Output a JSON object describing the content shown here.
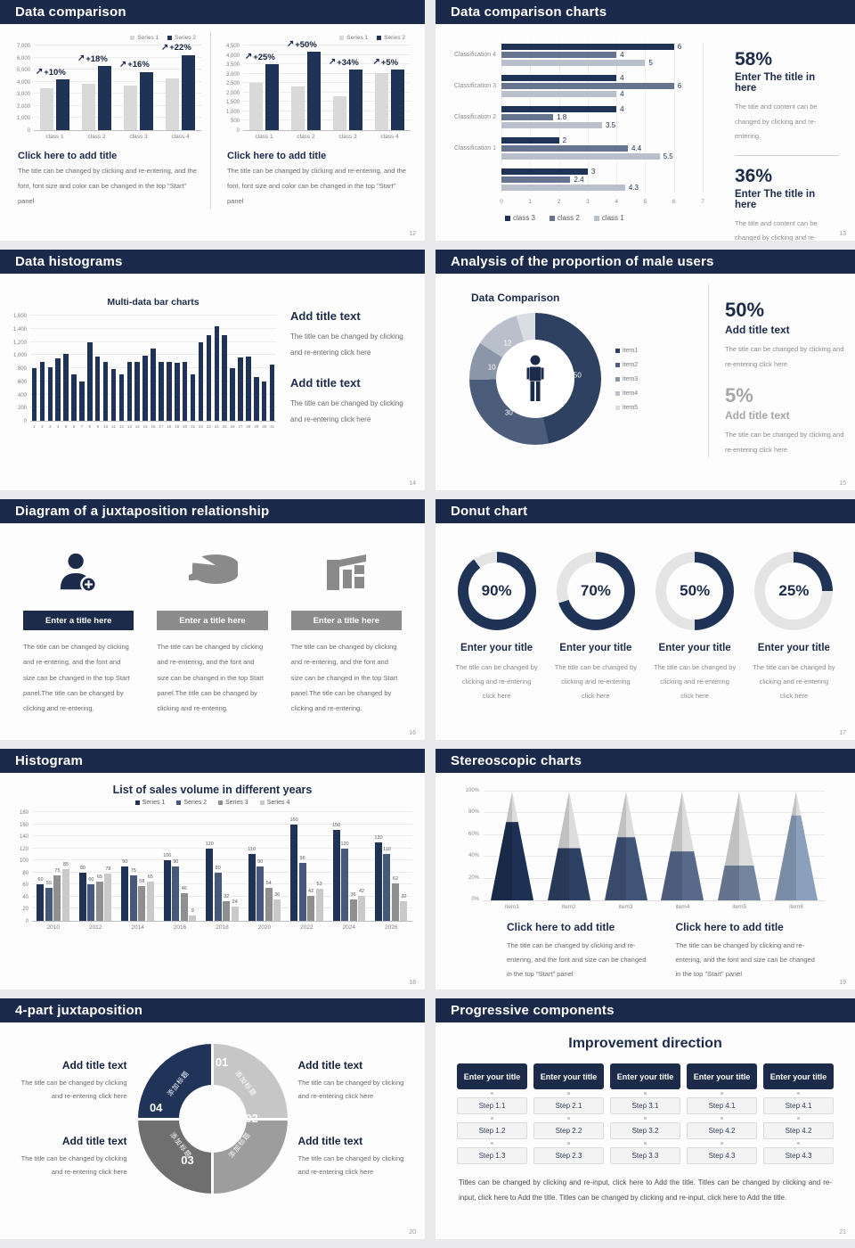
{
  "colors": {
    "header_bar": "#1b2a4a",
    "navy": "#1f3356",
    "light_gray_bar": "#d9d9d9",
    "background": "#e9e9ec"
  },
  "slides": {
    "s12": {
      "header": "Data comparison",
      "page": "12",
      "panels": [
        {
          "title": "Click here to add title",
          "body": "The title can be changed by clicking and re-entering, and the font, font size and color can be changed in the top \"Start\" panel"
        },
        {
          "title": "Click here to add title",
          "body": "The title can be changed by clicking and re-entering, and the font, font size and color can be changed in the top \"Start\" panel"
        }
      ]
    },
    "s13": {
      "header": "Data comparison charts",
      "page": "13",
      "stats": [
        {
          "pct": "58%",
          "title": "Enter The title in here",
          "body": "The title and content can be changed by clicking and re-entering."
        },
        {
          "pct": "36%",
          "title": "Enter The title in here",
          "body": "The title and content can be changed by clicking and re-entering."
        }
      ]
    },
    "s14": {
      "header": "Data histograms",
      "page": "14",
      "blocks": [
        {
          "title": "Add title text",
          "body": "The title can be changed by clicking and re-entering click here"
        },
        {
          "title": "Add title text",
          "body": "The title can be changed by clicking and re-entering click here"
        }
      ]
    },
    "s15": {
      "header": "Analysis of the proportion of male users",
      "page": "15",
      "stats": [
        {
          "pct": "50%",
          "title": "Add title text",
          "body": "The title can be changed by clicking and re-entering click here"
        },
        {
          "pct": "5%",
          "title": "Add title text",
          "body": "The title can be changed by clicking and re-entering click here"
        }
      ]
    },
    "s16": {
      "header": "Diagram of a juxtaposition relationship",
      "page": "16",
      "cards": [
        {
          "title": "Enter a title here",
          "body": "The title can be changed by clicking and re-entering, and the font and size can be changed in the top Start panel.The title can be changed by clicking and re-entering."
        },
        {
          "title": "Enter a title here",
          "body": "The title can be changed by clicking and re-entering, and the font and size can be changed in the top Start panel.The title can be changed by clicking and re-entering."
        },
        {
          "title": "Enter a title here",
          "body": "The title can be changed by clicking and re-entering, and the font and size can be changed in the top Start panel.The title can be changed by clicking and re-entering."
        }
      ]
    },
    "s17": {
      "header": "Donut chart",
      "page": "17",
      "items": [
        {
          "label": "90%",
          "title": "Enter your title",
          "body": "The title can be changed by clicking and re-entering click here"
        },
        {
          "label": "70%",
          "title": "Enter your title",
          "body": "The title can be changed by clicking and re-entering click here"
        },
        {
          "label": "50%",
          "title": "Enter your title",
          "body": "The title can be changed by clicking and re-entering click here"
        },
        {
          "label": "25%",
          "title": "Enter your title",
          "body": "The title can be changed by clicking and re-entering click here"
        }
      ]
    },
    "s18": {
      "header": "Histogram",
      "page": "18"
    },
    "s19": {
      "header": "Stereoscopic charts",
      "page": "19",
      "blocks": [
        {
          "title": "Click here to add title",
          "body": "The title can be changed by clicking and re-entering, and the font and size can be changed in the top \"Start\" panel"
        },
        {
          "title": "Click here to add title",
          "body": "The title can be changed by clicking and re-entering, and the font and size can be changed in the top \"Start\" panel"
        }
      ]
    },
    "s20": {
      "header": "4-part juxtaposition",
      "page": "20",
      "colors": [
        "#c6c6c6",
        "#9d9d9d",
        "#6f6f6f",
        "#203358"
      ],
      "segments": [
        {
          "num": "01",
          "label": "添加标题"
        },
        {
          "num": "02",
          "label": "添加标题"
        },
        {
          "num": "03",
          "label": "添加标题"
        },
        {
          "num": "04",
          "label": "添加标题"
        }
      ],
      "blocks": [
        {
          "title": "Add title text",
          "body": "The title can be changed by clicking and re-entering click here"
        },
        {
          "title": "Add title text",
          "body": "The title can be changed by clicking and re-entering click here"
        },
        {
          "title": "Add title text",
          "body": "The title can be changed by clicking and re-entering click here"
        },
        {
          "title": "Add title text",
          "body": "The title can be changed by clicking and re-entering click here"
        }
      ]
    },
    "s21": {
      "header": "Progressive components",
      "page": "21",
      "heading": "Improvement direction",
      "columns": [
        {
          "title": "Enter your title",
          "steps": [
            "Step 1.1",
            "Step 1.2",
            "Step 1.3"
          ]
        },
        {
          "title": "Enter your title",
          "steps": [
            "Step 2.1",
            "Step 2.2",
            "Step 2.3"
          ]
        },
        {
          "title": "Enter your title",
          "steps": [
            "Step 3.1",
            "Step 3.2",
            "Step 3.3"
          ]
        },
        {
          "title": "Enter your title",
          "steps": [
            "Step 4.1",
            "Step 4.2",
            "Step 4.3"
          ]
        },
        {
          "title": "Enter your title",
          "steps": [
            "Step 4.1",
            "Step 4.2",
            "Step 4.3"
          ]
        }
      ],
      "footer": "Titles can be changed by clicking and re-input, click here to Add the title. Titles can be changed by clicking and re-input, click here to Add the title. Titles can be changed by clicking and re-input, click here to Add the title."
    }
  },
  "chart_data": [
    {
      "id": "s12a",
      "type": "bar",
      "title": "",
      "categories": [
        "class 1",
        "class 2",
        "class 3",
        "class 4"
      ],
      "series": [
        {
          "name": "Series 1",
          "color": "#d9d9d9",
          "values": [
            3500,
            3800,
            3700,
            4300
          ]
        },
        {
          "name": "Series 2",
          "color": "#1f3356",
          "values": [
            4200,
            5300,
            4800,
            6200
          ]
        }
      ],
      "annotations": [
        "+10%",
        "+18%",
        "+16%",
        "+22%"
      ],
      "ylim": [
        0,
        7000
      ],
      "ystep": 1000,
      "grid": true,
      "legend_position": "top-right"
    },
    {
      "id": "s12b",
      "type": "bar",
      "title": "",
      "categories": [
        "class 1",
        "class 2",
        "class 3",
        "class 4"
      ],
      "series": [
        {
          "name": "Series 1",
          "color": "#d9d9d9",
          "values": [
            2500,
            2300,
            1800,
            3050
          ]
        },
        {
          "name": "Series 2",
          "color": "#1f3356",
          "values": [
            3500,
            4150,
            3200,
            3200
          ]
        }
      ],
      "annotations": [
        "+25%",
        "+50%",
        "+34%",
        "+5%"
      ],
      "ylim": [
        0,
        4500
      ],
      "ystep": 500,
      "grid": true,
      "legend_position": "top-right"
    },
    {
      "id": "s13",
      "type": "bar",
      "orientation": "horizontal",
      "groups": [
        "Classification 4",
        "Classification 3",
        "Classification 2",
        "Classification 1",
        ""
      ],
      "series": [
        {
          "name": "class 3",
          "color": "#1f3356",
          "values": [
            6,
            4,
            4,
            2,
            3
          ]
        },
        {
          "name": "class 2",
          "color": "#66748f",
          "values": [
            4,
            6,
            1.8,
            4.4,
            2.4
          ]
        },
        {
          "name": "class 1",
          "color": "#b9c0cc",
          "values": [
            5,
            4,
            3.5,
            5.5,
            4.3
          ]
        }
      ],
      "xlim": [
        0,
        7
      ],
      "xticks": [
        0,
        1,
        2,
        3,
        4,
        5,
        6,
        7
      ],
      "data_labels": true,
      "legend_position": "bottom"
    },
    {
      "id": "s14",
      "type": "bar",
      "title": "Multi-data bar charts",
      "categories": [
        "1",
        "2",
        "3",
        "4",
        "5",
        "6",
        "7",
        "8",
        "9",
        "10",
        "11",
        "12",
        "13",
        "14",
        "15",
        "16",
        "17",
        "18",
        "19",
        "20",
        "21",
        "22",
        "23",
        "24",
        "25",
        "26",
        "27",
        "28",
        "29",
        "30",
        "31"
      ],
      "series": [
        {
          "name": "value",
          "color": "#1f3356",
          "values": [
            800,
            900,
            810,
            950,
            1020,
            700,
            600,
            1200,
            980,
            890,
            780,
            700,
            890,
            890,
            990,
            1100,
            900,
            900,
            880,
            900,
            700,
            1200,
            1300,
            1440,
            1300,
            800,
            960,
            970,
            660,
            600,
            860
          ]
        }
      ],
      "ylim": [
        0,
        1600
      ],
      "ystep": 200,
      "grid": true
    },
    {
      "id": "s15",
      "type": "pie",
      "title": "Data Comparison",
      "slices": [
        {
          "label": "item1",
          "value": 50,
          "color": "#2e4160"
        },
        {
          "label": "item2",
          "value": 30,
          "color": "#4c5d7c"
        },
        {
          "label": "item3",
          "value": 10,
          "color": "#8b96a9"
        },
        {
          "label": "item4",
          "value": 12,
          "color": "#b9c0cb"
        },
        {
          "label": "item5",
          "value": 5,
          "color": "#dadde3"
        }
      ],
      "shown_labels": [
        {
          "text": "50",
          "x": 82,
          "y": 47
        },
        {
          "text": "30",
          "x": 30,
          "y": 76
        },
        {
          "text": "10",
          "x": 17,
          "y": 41
        },
        {
          "text": "12",
          "x": 29,
          "y": 23
        }
      ],
      "legend_position": "right"
    },
    {
      "id": "s17",
      "type": "pie",
      "subtype": "progress-donuts",
      "values": [
        90,
        70,
        50,
        25
      ],
      "color": "#1f3356",
      "track": "#e4e4e4"
    },
    {
      "id": "s18",
      "type": "bar",
      "title": "List of sales volume in different years",
      "categories": [
        "2010",
        "2012",
        "2014",
        "2016",
        "2018",
        "2020",
        "2022",
        "2024",
        "2026"
      ],
      "series": [
        {
          "name": "Series 1",
          "color": "#1f3356",
          "values": [
            60,
            80,
            90,
            100,
            120,
            110,
            160,
            150,
            130
          ]
        },
        {
          "name": "Series 2",
          "color": "#46597b",
          "values": [
            55,
            60,
            75,
            90,
            80,
            90,
            96,
            120,
            110
          ]
        },
        {
          "name": "Series 3",
          "color": "#8f8f8f",
          "values": [
            75,
            65,
            58,
            46,
            32,
            54,
            42,
            36,
            62
          ]
        },
        {
          "name": "Series 4",
          "color": "#c9c9c9",
          "values": [
            85,
            78,
            65,
            9,
            24,
            36,
            53,
            42,
            32
          ]
        }
      ],
      "ylim": [
        0,
        180
      ],
      "ystep": 20,
      "data_labels": true,
      "grid": true,
      "legend_position": "top"
    },
    {
      "id": "s19",
      "type": "bar",
      "subtype": "pyramid",
      "categories": [
        "item1",
        "item2",
        "item3",
        "item4",
        "item5",
        "item6"
      ],
      "values": [
        72,
        48,
        58,
        45,
        32,
        78
      ],
      "colors": [
        "#1d3053",
        "#2d4164",
        "#405478",
        "#58698b",
        "#7485a0",
        "#8ba0bc"
      ],
      "top_color": "#dcdcdc",
      "yticks": [
        "0%",
        "20%",
        "40%",
        "60%",
        "80%",
        "100%"
      ],
      "ylim": [
        0,
        100
      ]
    }
  ]
}
